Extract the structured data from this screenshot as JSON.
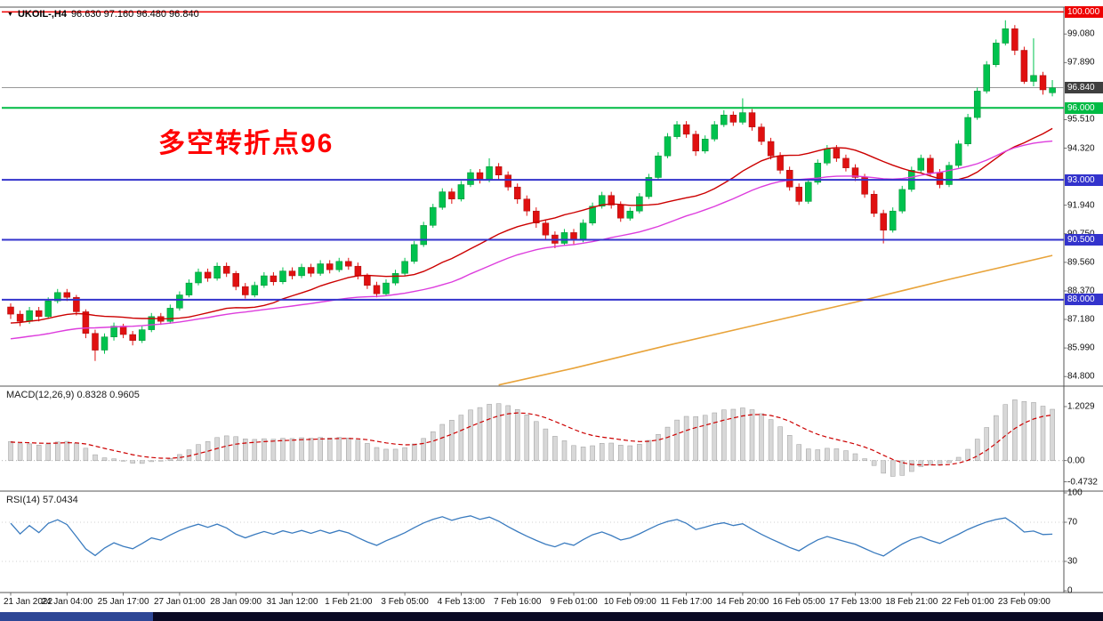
{
  "colors": {
    "candle_up": "#00c24e",
    "candle_down": "#e01010",
    "ma_fast": "#cc0000",
    "ma_mid": "#dd3ddd",
    "ma_long": "#e8a33a",
    "macd_hist": "#d8d8d8",
    "macd_signal": "#cc0000",
    "rsi_line": "#3a7bbf",
    "annotation_red": "#ff0000",
    "level_blue": "#3333cc",
    "level_green": "#00bb44",
    "level_red": "#ee0000",
    "current_price_bg": "#3f3f3f",
    "taskbar_bg": "#0a0a24",
    "taskbar_accent": "#2e4796"
  },
  "chart_data": {
    "type": "candlestick",
    "symbol_title": "UKOIL-,H4",
    "ohlc_title": "96.630 97.160 96.480 96.840",
    "annotation": "多空转折点96",
    "price_axis": {
      "ticks": [
        "99.080",
        "97.890",
        "95.510",
        "94.320",
        "91.940",
        "90.750",
        "89.560",
        "88.370",
        "87.180",
        "85.990",
        "84.800"
      ],
      "levels": [
        {
          "label": "100.000",
          "value": 100.0,
          "hex": "#ee0000",
          "width": 1.5
        },
        {
          "label": "96.000",
          "value": 96.0,
          "hex": "#00bb44",
          "width": 2
        },
        {
          "label": "93.000",
          "value": 93.0,
          "hex": "#3333cc",
          "width": 2
        },
        {
          "label": "90.500",
          "value": 90.5,
          "hex": "#3333cc",
          "width": 2
        },
        {
          "label": "88.000",
          "value": 88.0,
          "hex": "#3333cc",
          "width": 2
        }
      ],
      "current": {
        "label": "96.840",
        "value": 96.84,
        "box_hex": "#3f3f3f",
        "line_hex": "#8a8a8a"
      }
    },
    "overlays": {
      "ma_fast_period": 20,
      "ma_mid_period": 40,
      "long_ma_points": [
        [
          52,
          84.45
        ],
        [
          60,
          85.15
        ],
        [
          70,
          86.1
        ],
        [
          80,
          87.0
        ],
        [
          90,
          87.9
        ],
        [
          100,
          88.85
        ],
        [
          111,
          89.85
        ]
      ]
    },
    "candles": [
      [
        87.7,
        87.85,
        87.2,
        87.4
      ],
      [
        87.4,
        87.55,
        86.9,
        87.1
      ],
      [
        87.1,
        87.7,
        87.0,
        87.55
      ],
      [
        87.55,
        87.7,
        87.1,
        87.3
      ],
      [
        87.3,
        88.1,
        87.2,
        87.95
      ],
      [
        87.95,
        88.45,
        87.85,
        88.3
      ],
      [
        88.3,
        88.45,
        87.95,
        88.1
      ],
      [
        88.1,
        88.2,
        87.35,
        87.5
      ],
      [
        87.5,
        87.6,
        86.4,
        86.6
      ],
      [
        86.6,
        86.75,
        85.45,
        85.9
      ],
      [
        85.9,
        86.6,
        85.75,
        86.45
      ],
      [
        86.45,
        87.05,
        86.3,
        86.9
      ],
      [
        86.9,
        87.0,
        86.4,
        86.55
      ],
      [
        86.55,
        86.7,
        86.1,
        86.3
      ],
      [
        86.3,
        86.9,
        86.2,
        86.75
      ],
      [
        86.75,
        87.45,
        86.65,
        87.3
      ],
      [
        87.3,
        87.45,
        86.95,
        87.1
      ],
      [
        87.1,
        87.8,
        87.0,
        87.65
      ],
      [
        87.65,
        88.35,
        87.55,
        88.2
      ],
      [
        88.2,
        88.85,
        88.1,
        88.7
      ],
      [
        88.7,
        89.3,
        88.6,
        89.15
      ],
      [
        89.15,
        89.3,
        88.75,
        88.9
      ],
      [
        88.9,
        89.55,
        88.8,
        89.4
      ],
      [
        89.4,
        89.55,
        88.95,
        89.1
      ],
      [
        89.1,
        89.2,
        88.4,
        88.55
      ],
      [
        88.55,
        88.7,
        88.05,
        88.2
      ],
      [
        88.2,
        88.75,
        88.1,
        88.6
      ],
      [
        88.6,
        89.15,
        88.5,
        89.0
      ],
      [
        89.0,
        89.15,
        88.6,
        88.75
      ],
      [
        88.75,
        89.35,
        88.65,
        89.2
      ],
      [
        89.2,
        89.35,
        88.85,
        89.0
      ],
      [
        89.0,
        89.5,
        88.9,
        89.35
      ],
      [
        89.35,
        89.5,
        88.95,
        89.1
      ],
      [
        89.1,
        89.65,
        89.0,
        89.5
      ],
      [
        89.5,
        89.65,
        89.1,
        89.25
      ],
      [
        89.25,
        89.75,
        89.15,
        89.6
      ],
      [
        89.6,
        89.75,
        89.25,
        89.4
      ],
      [
        89.4,
        89.55,
        88.85,
        89.0
      ],
      [
        89.0,
        89.1,
        88.45,
        88.6
      ],
      [
        88.6,
        88.75,
        88.1,
        88.25
      ],
      [
        88.25,
        88.85,
        88.15,
        88.7
      ],
      [
        88.7,
        89.25,
        88.6,
        89.1
      ],
      [
        89.1,
        89.75,
        89.0,
        89.6
      ],
      [
        89.6,
        90.45,
        89.5,
        90.3
      ],
      [
        90.3,
        91.25,
        90.2,
        91.1
      ],
      [
        91.1,
        92.0,
        91.0,
        91.85
      ],
      [
        91.85,
        92.65,
        91.75,
        92.5
      ],
      [
        92.5,
        92.65,
        92.0,
        92.2
      ],
      [
        92.2,
        92.95,
        92.1,
        92.8
      ],
      [
        92.8,
        93.45,
        92.7,
        93.3
      ],
      [
        93.3,
        93.45,
        92.85,
        93.0
      ],
      [
        93.0,
        93.9,
        92.9,
        93.55
      ],
      [
        93.55,
        93.7,
        93.0,
        93.2
      ],
      [
        93.2,
        93.35,
        92.55,
        92.7
      ],
      [
        92.7,
        92.85,
        92.0,
        92.2
      ],
      [
        92.2,
        92.35,
        91.5,
        91.7
      ],
      [
        91.7,
        91.85,
        91.0,
        91.2
      ],
      [
        91.2,
        91.35,
        90.5,
        90.7
      ],
      [
        90.7,
        90.85,
        90.15,
        90.35
      ],
      [
        90.35,
        90.95,
        90.25,
        90.8
      ],
      [
        90.8,
        90.95,
        90.3,
        90.5
      ],
      [
        90.5,
        91.35,
        90.4,
        91.2
      ],
      [
        91.2,
        92.05,
        91.1,
        91.9
      ],
      [
        91.9,
        92.5,
        91.8,
        92.35
      ],
      [
        92.35,
        92.5,
        91.8,
        91.95
      ],
      [
        91.95,
        92.1,
        91.25,
        91.4
      ],
      [
        91.4,
        91.85,
        91.3,
        91.7
      ],
      [
        91.7,
        92.45,
        91.6,
        92.3
      ],
      [
        92.3,
        93.25,
        92.2,
        93.1
      ],
      [
        93.1,
        94.15,
        93.0,
        94.0
      ],
      [
        94.0,
        94.95,
        93.9,
        94.8
      ],
      [
        94.8,
        95.45,
        94.7,
        95.3
      ],
      [
        95.3,
        95.45,
        94.75,
        94.9
      ],
      [
        94.9,
        95.05,
        94.0,
        94.2
      ],
      [
        94.2,
        94.85,
        94.1,
        94.7
      ],
      [
        94.7,
        95.45,
        94.6,
        95.3
      ],
      [
        95.3,
        95.9,
        95.2,
        95.7
      ],
      [
        95.7,
        95.85,
        95.25,
        95.4
      ],
      [
        95.4,
        96.4,
        95.3,
        95.8
      ],
      [
        95.8,
        95.95,
        95.05,
        95.2
      ],
      [
        95.2,
        95.35,
        94.45,
        94.6
      ],
      [
        94.6,
        94.75,
        93.85,
        94.0
      ],
      [
        94.0,
        94.15,
        93.25,
        93.4
      ],
      [
        93.4,
        93.55,
        92.55,
        92.7
      ],
      [
        92.7,
        92.85,
        91.95,
        92.1
      ],
      [
        92.1,
        93.05,
        92.0,
        92.9
      ],
      [
        92.9,
        93.85,
        92.8,
        93.7
      ],
      [
        93.7,
        94.45,
        93.6,
        94.3
      ],
      [
        94.3,
        94.45,
        93.75,
        93.9
      ],
      [
        93.9,
        94.05,
        93.35,
        93.5
      ],
      [
        93.5,
        93.65,
        92.95,
        93.1
      ],
      [
        93.1,
        93.25,
        92.25,
        92.4
      ],
      [
        92.4,
        92.55,
        91.45,
        91.6
      ],
      [
        91.6,
        91.75,
        90.35,
        90.9
      ],
      [
        90.9,
        91.85,
        90.8,
        91.7
      ],
      [
        91.7,
        92.75,
        91.6,
        92.6
      ],
      [
        92.6,
        93.55,
        92.5,
        93.4
      ],
      [
        93.4,
        94.05,
        93.3,
        93.9
      ],
      [
        93.9,
        94.05,
        93.15,
        93.3
      ],
      [
        93.3,
        93.45,
        92.65,
        92.8
      ],
      [
        92.8,
        93.75,
        92.7,
        93.6
      ],
      [
        93.6,
        94.65,
        93.5,
        94.5
      ],
      [
        94.5,
        95.75,
        94.4,
        95.6
      ],
      [
        95.6,
        96.85,
        95.5,
        96.7
      ],
      [
        96.7,
        97.95,
        96.6,
        97.8
      ],
      [
        97.8,
        98.85,
        97.7,
        98.7
      ],
      [
        98.7,
        99.65,
        98.6,
        99.3
      ],
      [
        99.3,
        99.45,
        98.2,
        98.4
      ],
      [
        98.4,
        98.55,
        97.0,
        97.1
      ],
      [
        97.1,
        98.9,
        96.9,
        97.35
      ],
      [
        97.35,
        97.5,
        96.55,
        96.75
      ],
      [
        96.63,
        97.16,
        96.48,
        96.84
      ]
    ],
    "indicators": {
      "macd": {
        "label": "MACD(12,26,9) 0.8328 0.9605",
        "fast": 12,
        "slow": 26,
        "signal": 9,
        "scale": [
          "1.2029",
          "0.00",
          "-0.4732"
        ]
      },
      "rsi": {
        "label": "RSI(14) 57.0434",
        "period": 14,
        "ticks": [
          "100",
          "70",
          "30",
          "0"
        ],
        "levels": [
          70,
          30
        ]
      }
    },
    "x_axis": {
      "labels": [
        "21 Jan 2022",
        "24 Jan 04:00",
        "25 Jan 17:00",
        "27 Jan 01:00",
        "28 Jan 09:00",
        "31 Jan 12:00",
        "1 Feb 21:00",
        "3 Feb 05:00",
        "4 Feb 13:00",
        "7 Feb 16:00",
        "9 Feb 01:00",
        "10 Feb 09:00",
        "11 Feb 17:00",
        "14 Feb 20:00",
        "16 Feb 05:00",
        "17 Feb 13:00",
        "18 Feb 21:00",
        "22 Feb 01:00",
        "23 Feb 09:00"
      ],
      "bar_index": [
        0,
        6,
        12,
        18,
        24,
        30,
        36,
        42,
        48,
        54,
        60,
        66,
        72,
        78,
        84,
        90,
        96,
        102,
        108
      ]
    }
  }
}
